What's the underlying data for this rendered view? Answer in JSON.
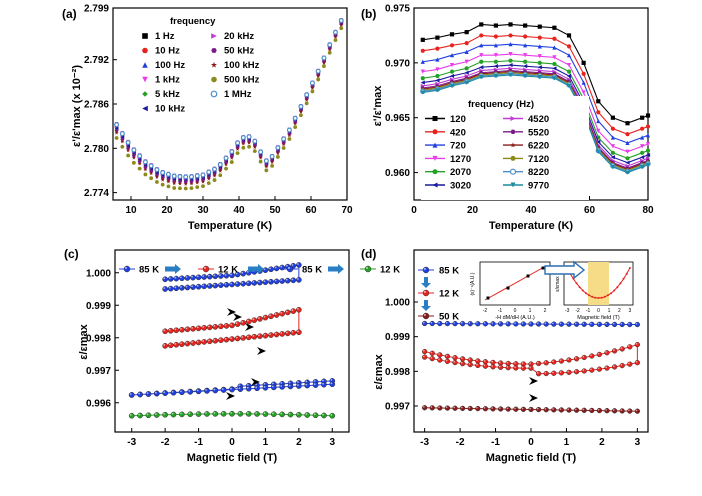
{
  "chart_data": [
    {
      "id": "a",
      "panel_label": "(a)",
      "type": "scatter",
      "xlabel": "Temperature (K)",
      "ylabel": "ε'/ε'max (x 10⁻²)",
      "xlim": [
        5,
        70
      ],
      "ylim": [
        2.773,
        2.799
      ],
      "xticks": [
        "10",
        "20",
        "30",
        "40",
        "50",
        "60",
        "70"
      ],
      "yticks": [
        "2.774",
        "2.780",
        "2.786",
        "2.792",
        "2.799"
      ],
      "legend_title": "frequency",
      "series": [
        {
          "name": "1 Hz",
          "color": "#000000",
          "marker": "square",
          "offset": 0.0006
        },
        {
          "name": "10 Hz",
          "color": "#e8231e",
          "marker": "circle",
          "offset": 0.0004
        },
        {
          "name": "100 Hz",
          "color": "#1f3fe0",
          "marker": "triangle-up",
          "offset": 0.0003
        },
        {
          "name": "1 kHz",
          "color": "#e93be9",
          "marker": "triangle-down",
          "offset": 0.0008
        },
        {
          "name": "5 kHz",
          "color": "#24a024",
          "marker": "diamond",
          "offset": 0.0001
        },
        {
          "name": "10 kHz",
          "color": "#1a1a9e",
          "marker": "triangle-left",
          "offset": 0.0002
        },
        {
          "name": "20 kHz",
          "color": "#c23bd6",
          "marker": "triangle-right",
          "offset": 0.0005
        },
        {
          "name": "50 kHz",
          "color": "#7a1a8a",
          "marker": "hexagon",
          "offset": -0.0001
        },
        {
          "name": "100 kHz",
          "color": "#8a1a1a",
          "marker": "star",
          "offset": -0.0004
        },
        {
          "name": "500 kHz",
          "color": "#8c8a1a",
          "marker": "circle",
          "offset": -0.0011
        },
        {
          "name": "1 MHz",
          "color": "#4a8ec9",
          "marker": "circle-open",
          "offset": 0.0007
        }
      ],
      "base_curve_x": [
        6,
        10,
        14,
        18,
        22,
        26,
        30,
        34,
        38,
        40,
        42,
        44,
        46,
        48,
        50,
        54,
        58,
        62,
        66,
        70
      ],
      "base_curve_y": [
        2.7825,
        2.7795,
        2.7775,
        2.7762,
        2.7756,
        2.7755,
        2.7758,
        2.7768,
        2.779,
        2.7805,
        2.7812,
        2.7808,
        2.779,
        2.7775,
        2.779,
        2.782,
        2.786,
        2.79,
        2.7945,
        2.7985
      ]
    },
    {
      "id": "b",
      "panel_label": "(b)",
      "type": "line",
      "xlabel": "Temperature (K)",
      "ylabel": "ε'/ε'max",
      "xlim": [
        0,
        80
      ],
      "ylim": [
        0.9575,
        0.975
      ],
      "xticks": [
        "0",
        "20",
        "40",
        "60",
        "80"
      ],
      "yticks": [
        "0.960",
        "0.965",
        "0.970",
        "0.975"
      ],
      "legend_title": "frequency (Hz)",
      "x": [
        3,
        8,
        13,
        18,
        23,
        28,
        33,
        38,
        43,
        48,
        53,
        58,
        63,
        68,
        73,
        78,
        80
      ],
      "series": [
        {
          "name": "120",
          "color": "#000000",
          "marker": "square",
          "values": [
            0.9721,
            0.9723,
            0.9726,
            0.9728,
            0.9735,
            0.9734,
            0.9735,
            0.9734,
            0.9733,
            0.9732,
            0.9725,
            0.97,
            0.9665,
            0.965,
            0.9645,
            0.965,
            0.9652
          ]
        },
        {
          "name": "420",
          "color": "#e8231e",
          "marker": "circle",
          "values": [
            0.9711,
            0.9713,
            0.9716,
            0.9718,
            0.9725,
            0.9724,
            0.9725,
            0.9724,
            0.9723,
            0.9722,
            0.9715,
            0.969,
            0.9655,
            0.964,
            0.9635,
            0.964,
            0.9642
          ]
        },
        {
          "name": "720",
          "color": "#1f3fe0",
          "marker": "triangle-up",
          "values": [
            0.9701,
            0.9703,
            0.9707,
            0.971,
            0.9716,
            0.9716,
            0.9717,
            0.9716,
            0.9715,
            0.9714,
            0.9707,
            0.9682,
            0.9647,
            0.9632,
            0.9627,
            0.9632,
            0.9634
          ]
        },
        {
          "name": "1270",
          "color": "#e93be9",
          "marker": "triangle-down",
          "values": [
            0.9692,
            0.9694,
            0.9698,
            0.9701,
            0.9707,
            0.9707,
            0.9708,
            0.9707,
            0.9706,
            0.9705,
            0.9698,
            0.9673,
            0.9638,
            0.9624,
            0.9619,
            0.9624,
            0.9626
          ]
        },
        {
          "name": "2070",
          "color": "#24a024",
          "marker": "circle",
          "values": [
            0.9686,
            0.9688,
            0.9692,
            0.9695,
            0.9701,
            0.9701,
            0.9702,
            0.9701,
            0.97,
            0.9699,
            0.9692,
            0.9667,
            0.9632,
            0.9618,
            0.9613,
            0.9618,
            0.962
          ]
        },
        {
          "name": "3020",
          "color": "#1a1a9e",
          "marker": "triangle-left",
          "values": [
            0.9682,
            0.9684,
            0.9688,
            0.9691,
            0.9696,
            0.9697,
            0.9698,
            0.9697,
            0.9696,
            0.9695,
            0.9688,
            0.9663,
            0.9628,
            0.9614,
            0.9609,
            0.9614,
            0.9616
          ]
        },
        {
          "name": "4520",
          "color": "#c23bd6",
          "marker": "triangle-right",
          "values": [
            0.9679,
            0.9681,
            0.9685,
            0.9688,
            0.9693,
            0.9694,
            0.9695,
            0.9694,
            0.9693,
            0.9692,
            0.9685,
            0.966,
            0.9625,
            0.9611,
            0.9606,
            0.9611,
            0.9613
          ]
        },
        {
          "name": "5520",
          "color": "#7a1a8a",
          "marker": "hexagon",
          "values": [
            0.9677,
            0.9679,
            0.9683,
            0.9686,
            0.9691,
            0.9692,
            0.9693,
            0.9692,
            0.9691,
            0.969,
            0.9683,
            0.9658,
            0.9623,
            0.9609,
            0.9604,
            0.9609,
            0.9611
          ]
        },
        {
          "name": "6220",
          "color": "#8a1a1a",
          "marker": "star",
          "values": [
            0.9676,
            0.9678,
            0.9682,
            0.9685,
            0.969,
            0.9691,
            0.9692,
            0.9691,
            0.969,
            0.9689,
            0.9682,
            0.9657,
            0.9622,
            0.9608,
            0.9603,
            0.9608,
            0.961
          ]
        },
        {
          "name": "7120",
          "color": "#8c8a1a",
          "marker": "circle",
          "values": [
            0.9675,
            0.9677,
            0.9681,
            0.9684,
            0.9689,
            0.969,
            0.9691,
            0.969,
            0.9689,
            0.9688,
            0.9681,
            0.9656,
            0.9621,
            0.9607,
            0.9602,
            0.9607,
            0.9609
          ]
        },
        {
          "name": "8220",
          "color": "#4a8ec9",
          "marker": "circle-open",
          "values": [
            0.9674,
            0.9676,
            0.968,
            0.9683,
            0.9688,
            0.9689,
            0.969,
            0.9689,
            0.9688,
            0.9687,
            0.968,
            0.9655,
            0.962,
            0.9606,
            0.9601,
            0.9606,
            0.9608
          ]
        },
        {
          "name": "9770",
          "color": "#1a8a9e",
          "marker": "triangle-down",
          "values": [
            0.9673,
            0.9675,
            0.9679,
            0.9682,
            0.9687,
            0.9688,
            0.9689,
            0.9688,
            0.9687,
            0.9686,
            0.9679,
            0.9654,
            0.9619,
            0.9605,
            0.96,
            0.9605,
            0.9607
          ]
        }
      ]
    },
    {
      "id": "c",
      "panel_label": "(c)",
      "type": "line",
      "xlabel": "Magnetic field (T)",
      "ylabel": "ε/εmax",
      "xlim": [
        -3.5,
        3.5
      ],
      "ylim": [
        0.9951,
        1.0007
      ],
      "xticks": [
        "-3",
        "-2",
        "-1",
        "0",
        "1",
        "2",
        "3"
      ],
      "yticks": [
        "0.996",
        "0.997",
        "0.998",
        "0.999",
        "1.000"
      ],
      "legend": [
        "85 K",
        "12 K",
        "85 K",
        "12 K"
      ],
      "legend_colors": [
        "#1f3fe0",
        "#e8231e",
        "#1f3fe0",
        "#24a024"
      ],
      "loops": [
        {
          "name": "85 K (first)",
          "color": "#1f3fe0",
          "center_y": 0.9998,
          "amp": 0.0004,
          "xmin": -2,
          "xmax": 2,
          "shape": "loop"
        },
        {
          "name": "12 K (first)",
          "color": "#e8231e",
          "center_y": 0.9982,
          "amp": 0.0006,
          "xmin": -2,
          "xmax": 2,
          "shape": "loop"
        },
        {
          "name": "85 K (second)",
          "color": "#1f3fe0",
          "center_y": 0.99645,
          "amp": 0.0006,
          "xmin": -3,
          "xmax": 3,
          "shape": "rising"
        },
        {
          "name": "12 K (second)",
          "color": "#24a024",
          "center_y": 0.9956,
          "amp": 0.00012,
          "xmin": -3,
          "xmax": 3,
          "shape": "flat"
        }
      ]
    },
    {
      "id": "d",
      "panel_label": "(d)",
      "type": "line",
      "xlabel": "Magnetic field (T)",
      "ylabel": "ε/εmax",
      "xlim": [
        -3.3,
        3.3
      ],
      "ylim": [
        0.99625,
        1.0015
      ],
      "xticks": [
        "-3",
        "-2",
        "-1",
        "0",
        "1",
        "2",
        "3"
      ],
      "yticks": [
        "0.997",
        "0.998",
        "0.999",
        "1.000"
      ],
      "legend": [
        "85 K",
        "12 K",
        "50 K"
      ],
      "legend_colors": [
        "#1f3fe0",
        "#e8231e",
        "#8a1a1a"
      ],
      "loops": [
        {
          "name": "85 K",
          "color": "#1f3fe0",
          "center_y": 0.99935,
          "amp": 3e-05,
          "shape": "flat"
        },
        {
          "name": "12 K",
          "color": "#e8231e",
          "center_y": 0.99805,
          "amp": 0.0008,
          "shape": "butterfly"
        },
        {
          "name": "50 K",
          "color": "#8a1a1a",
          "center_y": 0.99685,
          "amp": 0.0001,
          "shape": "flat"
        }
      ],
      "inset_left": {
        "ylabel": "(ε)⁻¹(A.U.)",
        "xlabel": "-H dM/dH (A.U.)",
        "xticks": [
          "-2",
          "-1",
          "0",
          "1",
          "2"
        ],
        "yticks": [
          "0",
          "2"
        ]
      },
      "inset_right": {
        "ylabel": "ε/εmax",
        "xlabel": "Magnetic field (T)",
        "xticks": [
          "-3",
          "-2",
          "-1",
          "0",
          "1",
          "2",
          "3"
        ],
        "highlight_range": [
          -1,
          1
        ]
      }
    }
  ]
}
